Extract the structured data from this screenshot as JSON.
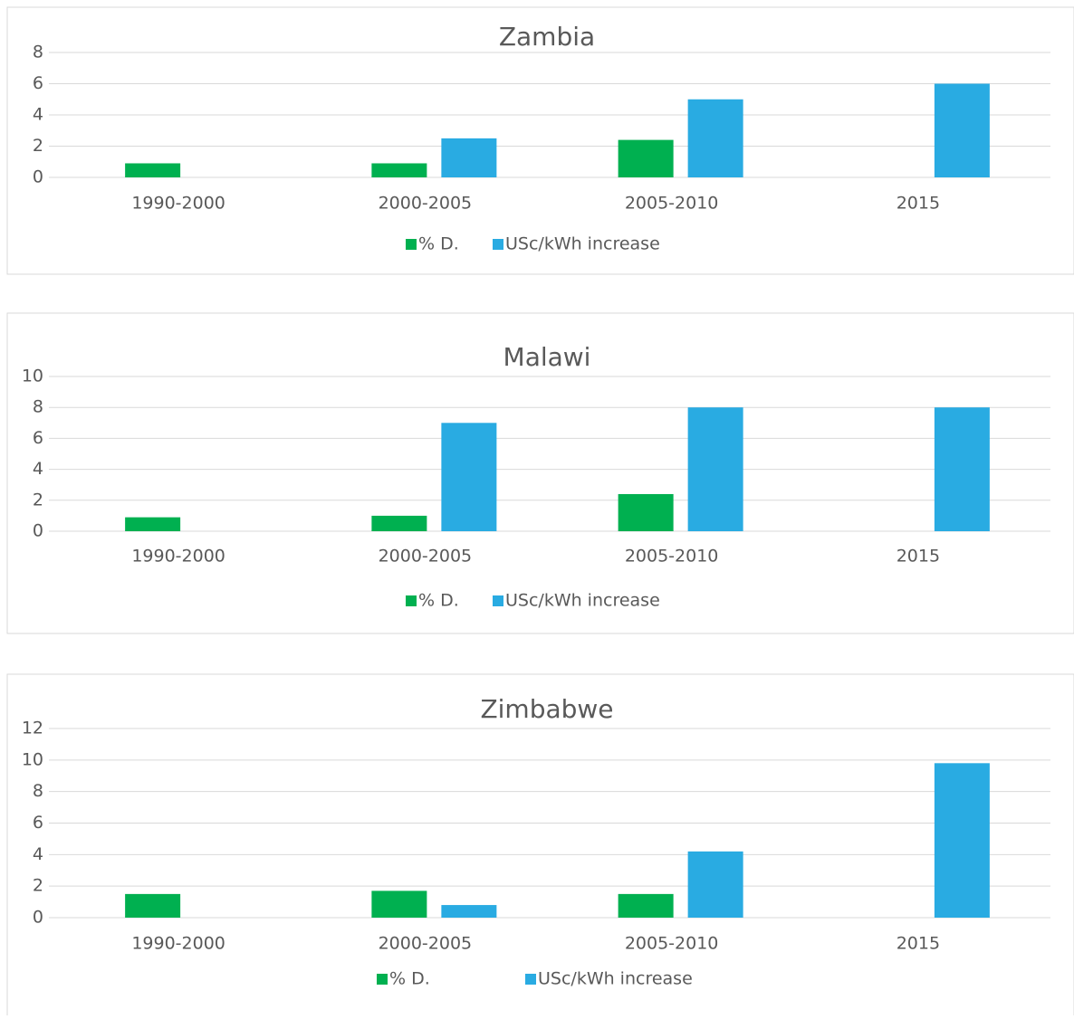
{
  "chart_data": [
    {
      "type": "bar",
      "title": "Zambia",
      "categories": [
        "1990-2000",
        "2000-2005",
        "2005-2010",
        "2015"
      ],
      "series": [
        {
          "name": "% D.",
          "color": "#00b050",
          "values": [
            0.9,
            0.9,
            2.4,
            0
          ]
        },
        {
          "name": "USc/kWh increase",
          "color": "#29abe2",
          "values": [
            0,
            2.5,
            5,
            6
          ]
        }
      ],
      "ylim": [
        0,
        8
      ],
      "yticks": [
        0,
        2,
        4,
        6,
        8
      ],
      "grid": true,
      "legend": "bottom"
    },
    {
      "type": "bar",
      "title": "Malawi",
      "categories": [
        "1990-2000",
        "2000-2005",
        "2005-2010",
        "2015"
      ],
      "series": [
        {
          "name": "% D.",
          "color": "#00b050",
          "values": [
            0.9,
            1,
            2.4,
            0
          ]
        },
        {
          "name": "USc/kWh increase",
          "color": "#29abe2",
          "values": [
            0,
            7,
            8,
            8
          ]
        }
      ],
      "ylim": [
        0,
        10
      ],
      "yticks": [
        0,
        2,
        4,
        6,
        8,
        10
      ],
      "grid": true,
      "legend": "bottom"
    },
    {
      "type": "bar",
      "title": "Zimbabwe",
      "categories": [
        "1990-2000",
        "2000-2005",
        "2005-2010",
        "2015"
      ],
      "series": [
        {
          "name": "% D.",
          "color": "#00b050",
          "values": [
            1.5,
            1.7,
            1.5,
            0
          ]
        },
        {
          "name": "USc/kWh increase",
          "color": "#29abe2",
          "values": [
            0,
            0.8,
            4.2,
            9.8
          ]
        }
      ],
      "ylim": [
        0,
        12
      ],
      "yticks": [
        0,
        2,
        4,
        6,
        8,
        10,
        12
      ],
      "grid": true,
      "legend": "bottom"
    }
  ]
}
